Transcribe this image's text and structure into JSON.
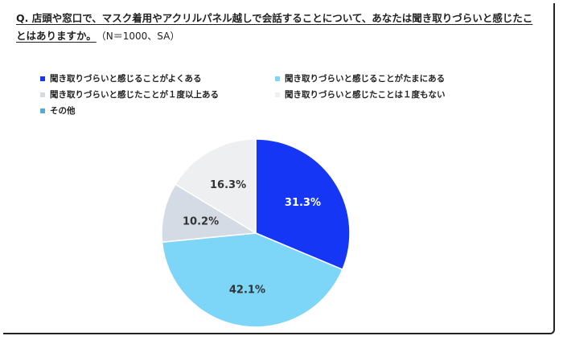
{
  "question": {
    "line1": "Q. 店頭や窓口で、マスク着用やアクリルパネル越しで会話することについて、あなたは聞き取りづらいと感じたこ",
    "line2": "とはありますか。",
    "meta": "（N＝1000、SA）"
  },
  "chart_data": {
    "type": "pie",
    "title": "",
    "legend_placement": "top",
    "slices": [
      {
        "label": "聞き取りづらいと感じることがよくある",
        "value": 31.3,
        "display": "31.3%",
        "color": "#1537f5",
        "label_color": "#ffffff"
      },
      {
        "label": "聞き取りづらいと感じることがたまにある",
        "value": 42.1,
        "display": "42.1%",
        "color": "#7dd5f7",
        "label_color": "#333333"
      },
      {
        "label": "聞き取りづらいと感じたことが１度以上ある",
        "value": 10.2,
        "display": "10.2%",
        "color": "#d5dbe4",
        "label_color": "#333333"
      },
      {
        "label": "聞き取りづらいと感じたことは１度もない",
        "value": 16.3,
        "display": "16.3%",
        "color": "#eeeff1",
        "label_color": "#333333"
      },
      {
        "label": "その他",
        "value": 0.0,
        "display": "",
        "color": "#5aa8d6",
        "label_color": "#333333"
      }
    ]
  }
}
